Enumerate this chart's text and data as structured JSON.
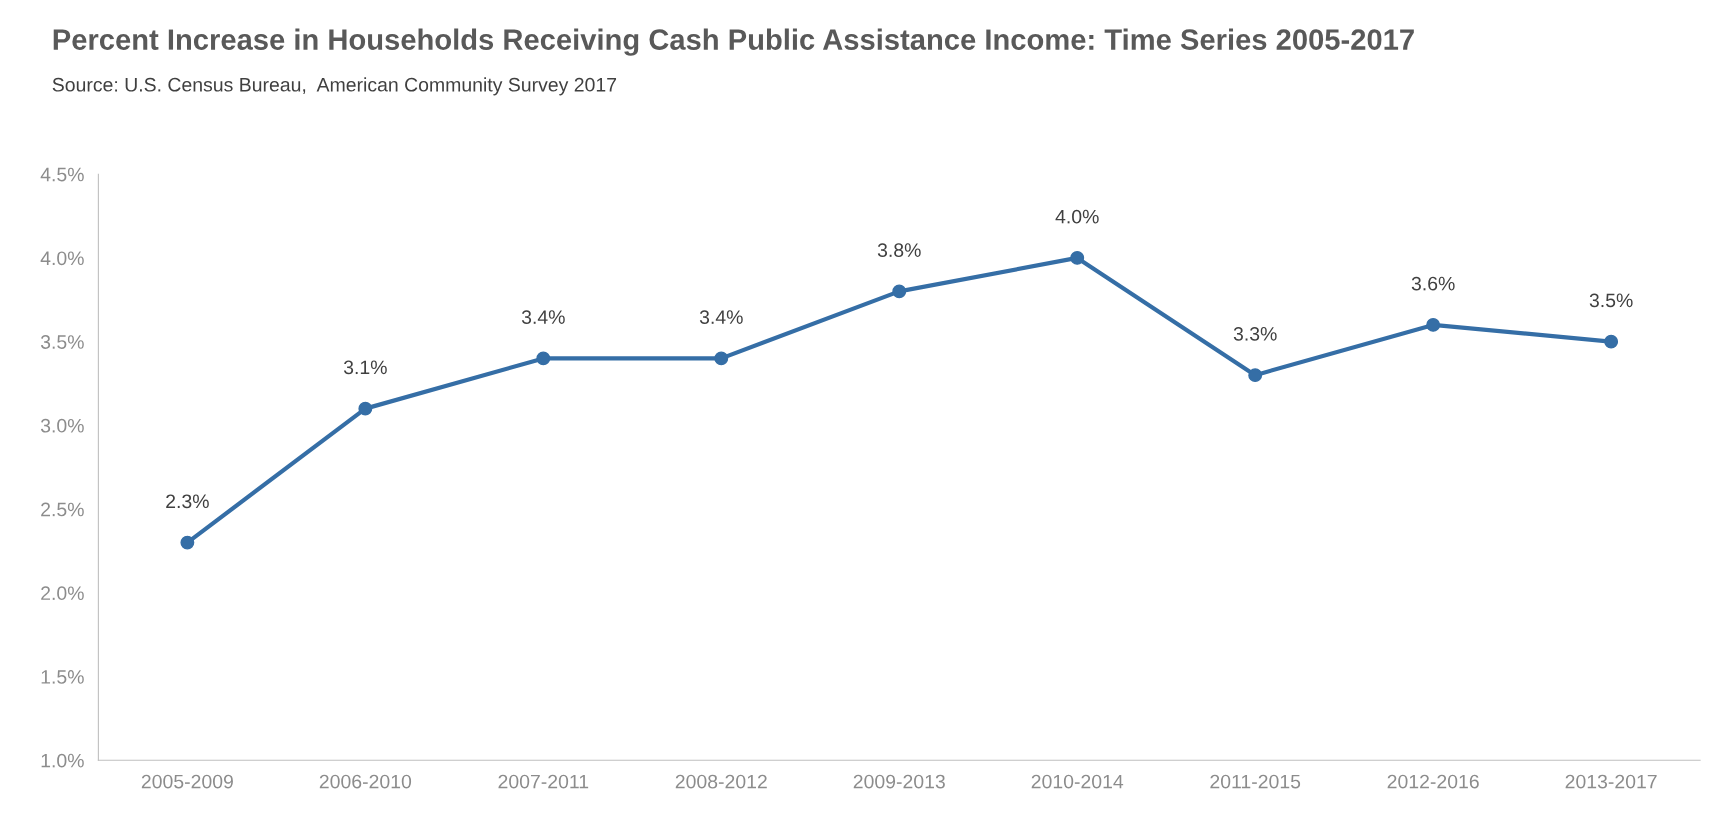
{
  "chart_data": {
    "type": "line",
    "title": "Percent Increase in Households Receiving Cash Public Assistance Income: Time Series 2005-2017",
    "annotations": [
      "Source: U.S. Census Bureau,  American Community Survey 2017"
    ],
    "categories": [
      "2005-2009",
      "2006-2010",
      "2007-2011",
      "2008-2012",
      "2009-2013",
      "2010-2014",
      "2011-2015",
      "2012-2016",
      "2013-2017"
    ],
    "series": [
      {
        "color": "#356ea6",
        "values": [
          2.3,
          3.1,
          3.4,
          3.4,
          3.8,
          4.0,
          3.3,
          3.6,
          3.5
        ],
        "value_labels": [
          "2.3%",
          "3.1%",
          "3.4%",
          "3.4%",
          "3.8%",
          "4.0%",
          "3.3%",
          "3.6%",
          "3.5%"
        ]
      }
    ],
    "ylim": [
      1.0,
      4.5
    ],
    "yticks": [
      {
        "value": 1.0,
        "label": "1.0%"
      },
      {
        "value": 1.5,
        "label": "1.5%"
      },
      {
        "value": 2.0,
        "label": "2.0%"
      },
      {
        "value": 2.5,
        "label": "2.5%"
      },
      {
        "value": 3.0,
        "label": "3.0%"
      },
      {
        "value": 3.5,
        "label": "3.5%"
      },
      {
        "value": 4.0,
        "label": "4.0%"
      },
      {
        "value": 4.5,
        "label": "4.5%"
      }
    ],
    "grid": false,
    "marker": "circle",
    "line_style": "solid"
  }
}
